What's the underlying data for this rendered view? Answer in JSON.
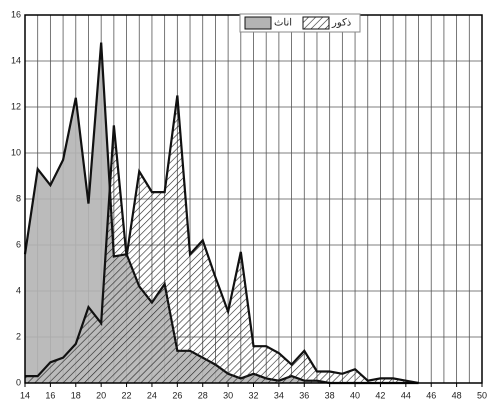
{
  "chart_data": {
    "type": "area",
    "x": [
      14,
      15,
      16,
      17,
      18,
      19,
      20,
      21,
      22,
      23,
      24,
      25,
      26,
      27,
      28,
      29,
      30,
      31,
      32,
      33,
      34,
      35,
      36,
      37,
      38,
      39,
      40,
      41,
      42,
      43,
      44,
      45
    ],
    "series": [
      {
        "name": "اناث",
        "color": "#b4b4b4",
        "fill": "solid",
        "values": [
          5.6,
          9.3,
          8.6,
          9.7,
          12.4,
          7.8,
          14.8,
          5.5,
          5.6,
          4.2,
          3.5,
          4.3,
          1.4,
          1.4,
          1.1,
          0.8,
          0.4,
          0.2,
          0.4,
          0.2,
          0.1,
          0.3,
          0.1,
          0.1,
          0,
          0,
          0,
          0,
          0,
          0,
          0,
          0
        ]
      },
      {
        "name": "ذكور",
        "color": "#111111",
        "fill": "hatch",
        "values": [
          0.3,
          0.3,
          0.9,
          1.1,
          1.7,
          3.3,
          2.6,
          11.2,
          5.5,
          9.2,
          8.3,
          8.3,
          12.5,
          5.6,
          6.2,
          4.6,
          3.1,
          5.7,
          1.6,
          1.6,
          1.3,
          0.8,
          1.4,
          0.5,
          0.5,
          0.4,
          0.6,
          0.1,
          0.2,
          0.2,
          0.1,
          0
        ]
      }
    ],
    "xlim": [
      14,
      50
    ],
    "xticks": [
      14,
      16,
      18,
      20,
      22,
      24,
      26,
      28,
      30,
      32,
      34,
      36,
      38,
      40,
      42,
      44,
      46,
      48,
      50
    ],
    "ylim": [
      0,
      16
    ],
    "yticks": [
      0,
      2,
      4,
      6,
      8,
      10,
      12,
      14,
      16
    ],
    "grid": true
  }
}
